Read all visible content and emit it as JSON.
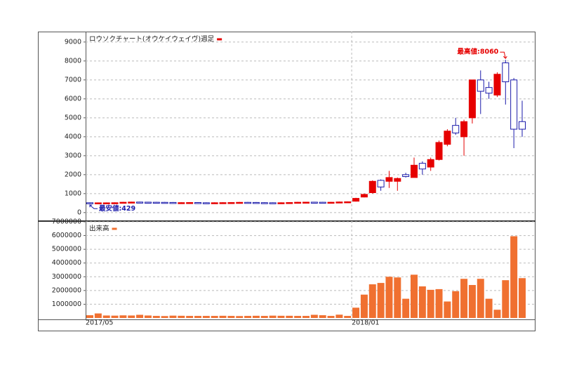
{
  "chart_data": [
    {
      "type": "candlestick",
      "title": "ロウソクチャート(オウケイウェイヴ)週足",
      "open": [
        520,
        505,
        510,
        515,
        520,
        545,
        555,
        550,
        545,
        540,
        535,
        525,
        525,
        530,
        520,
        515,
        520,
        525,
        530,
        540,
        535,
        525,
        520,
        515,
        520,
        530,
        545,
        550,
        545,
        540,
        545,
        560,
        600,
        820,
        1050,
        1700,
        1650,
        1650,
        2000,
        1850,
        2600,
        2400,
        2800,
        3600,
        4600,
        4000,
        5000,
        7000,
        6600,
        6200,
        7900,
        7000,
        4800
      ],
      "high": [
        540,
        535,
        535,
        540,
        565,
        575,
        575,
        570,
        565,
        560,
        555,
        545,
        550,
        550,
        540,
        540,
        545,
        550,
        560,
        560,
        555,
        545,
        540,
        540,
        550,
        565,
        570,
        570,
        565,
        565,
        580,
        590,
        780,
        1000,
        1700,
        1750,
        2200,
        1850,
        2100,
        2900,
        2700,
        2900,
        3800,
        4400,
        5000,
        4900,
        7000,
        7500,
        6900,
        7400,
        8060,
        7100,
        5900
      ],
      "low": [
        429,
        485,
        490,
        495,
        500,
        525,
        530,
        525,
        520,
        515,
        505,
        505,
        505,
        500,
        495,
        495,
        500,
        505,
        510,
        515,
        505,
        500,
        495,
        495,
        500,
        510,
        525,
        525,
        520,
        520,
        525,
        540,
        580,
        800,
        1000,
        1150,
        1300,
        1150,
        1850,
        1850,
        2000,
        2200,
        2750,
        3500,
        4100,
        3000,
        4700,
        5200,
        6000,
        6100,
        5700,
        3400,
        4000
      ],
      "close": [
        500,
        515,
        515,
        520,
        545,
        555,
        550,
        545,
        540,
        535,
        525,
        525,
        530,
        520,
        515,
        520,
        525,
        530,
        540,
        535,
        525,
        520,
        515,
        520,
        530,
        545,
        550,
        545,
        540,
        545,
        560,
        570,
        750,
        960,
        1650,
        1350,
        1850,
        1800,
        1900,
        2500,
        2300,
        2800,
        3700,
        4300,
        4200,
        4800,
        7000,
        6400,
        6300,
        7300,
        6900,
        4400,
        4400
      ],
      "up_color": "#e60000",
      "down_color": "#1a1aaa",
      "ylim": [
        -450,
        9550
      ],
      "yticks": [
        0,
        1000,
        2000,
        3000,
        4000,
        5000,
        6000,
        7000,
        8000,
        9000
      ],
      "grid": true,
      "annotations": {
        "high": "最高値:8060",
        "low": "最安値:429"
      }
    },
    {
      "type": "bar",
      "title": "出来高",
      "color": "#f07030",
      "categories": [
        "2017/05",
        null,
        null,
        null,
        null,
        null,
        null,
        null,
        null,
        null,
        null,
        null,
        null,
        null,
        null,
        null,
        null,
        null,
        null,
        null,
        null,
        null,
        null,
        null,
        null,
        null,
        null,
        null,
        null,
        null,
        null,
        null,
        "2018/01",
        null,
        null,
        null,
        null,
        null,
        null,
        null,
        null,
        null,
        null,
        null,
        null,
        null,
        null,
        null,
        null,
        null,
        null,
        null,
        null
      ],
      "values": [
        200000,
        330000,
        180000,
        170000,
        190000,
        180000,
        230000,
        180000,
        150000,
        140000,
        170000,
        160000,
        150000,
        150000,
        150000,
        150000,
        160000,
        150000,
        140000,
        150000,
        160000,
        150000,
        170000,
        160000,
        160000,
        150000,
        150000,
        230000,
        200000,
        150000,
        240000,
        150000,
        750000,
        1700000,
        2450000,
        2550000,
        3000000,
        2950000,
        1400000,
        3150000,
        2300000,
        2050000,
        2100000,
        1200000,
        1950000,
        2850000,
        2400000,
        2850000,
        1400000,
        600000,
        2750000,
        5950000,
        2900000
      ],
      "ylim": [
        0,
        7000000
      ],
      "yticks": [
        1000000,
        2000000,
        3000000,
        4000000,
        5000000,
        6000000,
        7000000
      ],
      "grid": true
    }
  ]
}
